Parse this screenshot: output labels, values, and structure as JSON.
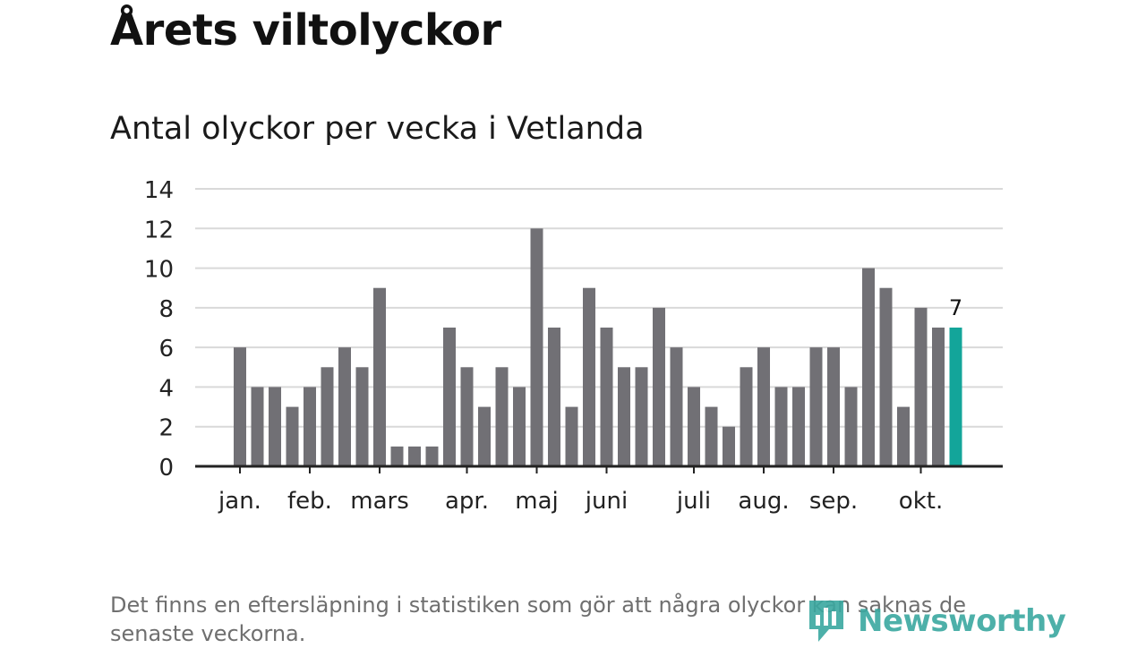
{
  "header": {
    "title": "Årets viltolyckor",
    "subtitle": "Antal olyckor per vecka i Vetlanda"
  },
  "chart_data": {
    "type": "bar",
    "title": "Antal olyckor per vecka i Vetlanda",
    "xlabel": "",
    "ylabel": "",
    "ylim": [
      0,
      14
    ],
    "yticks": [
      0,
      2,
      4,
      6,
      8,
      10,
      12,
      14
    ],
    "grid": true,
    "values": [
      6,
      4,
      4,
      3,
      4,
      5,
      6,
      5,
      9,
      1,
      1,
      1,
      7,
      5,
      3,
      5,
      4,
      12,
      7,
      3,
      9,
      7,
      5,
      5,
      8,
      6,
      4,
      3,
      2,
      5,
      6,
      4,
      4,
      6,
      6,
      4,
      10,
      9,
      3,
      8,
      7,
      7
    ],
    "month_labels": [
      {
        "label": "jan.",
        "bar_index": 0
      },
      {
        "label": "feb.",
        "bar_index": 4
      },
      {
        "label": "mars",
        "bar_index": 8
      },
      {
        "label": "apr.",
        "bar_index": 13
      },
      {
        "label": "maj",
        "bar_index": 17
      },
      {
        "label": "juni",
        "bar_index": 21
      },
      {
        "label": "juli",
        "bar_index": 26
      },
      {
        "label": "aug.",
        "bar_index": 30
      },
      {
        "label": "sep.",
        "bar_index": 34
      },
      {
        "label": "okt.",
        "bar_index": 39
      }
    ],
    "highlight": {
      "bar_index": 41,
      "label": "7"
    },
    "colors": {
      "bar": "#717075",
      "highlight": "#13a59a",
      "grid": "#d9d9d9",
      "axis": "#222222"
    }
  },
  "footer": {
    "note": "Det finns en eftersläpning i statistiken som gör att några olyckor kan saknas de senaste veckorna.",
    "brand": "Newsworthy",
    "brand_color": "#3aa8a0"
  }
}
